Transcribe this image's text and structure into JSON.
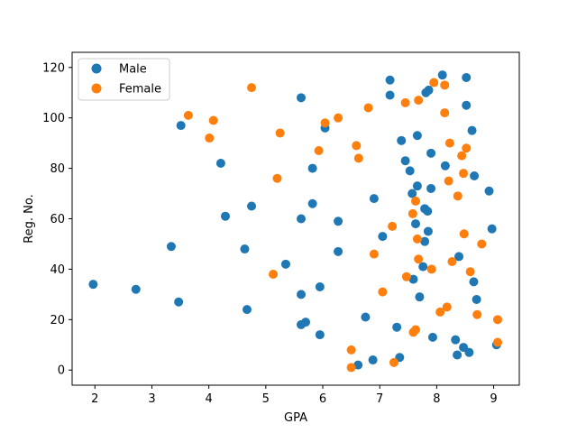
{
  "chart_data": {
    "type": "scatter",
    "title": "",
    "xlabel": "GPA",
    "ylabel": "Reg. No.",
    "xlim": [
      1.6,
      9.45
    ],
    "ylim": [
      -6,
      126
    ],
    "xticks": [
      2,
      3,
      4,
      5,
      6,
      7,
      8,
      9
    ],
    "yticks": [
      0,
      20,
      40,
      60,
      80,
      100,
      120
    ],
    "grid": false,
    "legend_position": "top-left",
    "series": [
      {
        "name": "Male",
        "color": "#1f77b4",
        "points": [
          [
            1.97,
            34
          ],
          [
            2.72,
            32
          ],
          [
            3.34,
            49
          ],
          [
            3.47,
            27
          ],
          [
            3.51,
            97
          ],
          [
            4.21,
            82
          ],
          [
            4.29,
            61
          ],
          [
            4.63,
            48
          ],
          [
            4.67,
            24
          ],
          [
            4.75,
            65
          ],
          [
            5.35,
            42
          ],
          [
            5.62,
            108
          ],
          [
            5.62,
            60
          ],
          [
            5.62,
            30
          ],
          [
            5.62,
            18
          ],
          [
            5.7,
            19
          ],
          [
            5.82,
            80
          ],
          [
            5.82,
            66
          ],
          [
            5.95,
            33
          ],
          [
            5.95,
            14
          ],
          [
            6.04,
            96
          ],
          [
            6.27,
            59
          ],
          [
            6.27,
            47
          ],
          [
            6.62,
            2
          ],
          [
            6.75,
            21
          ],
          [
            6.88,
            4
          ],
          [
            6.9,
            68
          ],
          [
            7.05,
            53
          ],
          [
            7.18,
            115
          ],
          [
            7.18,
            109
          ],
          [
            7.3,
            17
          ],
          [
            7.35,
            5
          ],
          [
            7.38,
            91
          ],
          [
            7.45,
            83
          ],
          [
            7.53,
            79
          ],
          [
            7.57,
            70
          ],
          [
            7.59,
            36
          ],
          [
            7.63,
            58
          ],
          [
            7.66,
            73
          ],
          [
            7.66,
            93
          ],
          [
            7.7,
            29
          ],
          [
            7.76,
            41
          ],
          [
            7.79,
            64
          ],
          [
            7.79,
            51
          ],
          [
            7.81,
            110
          ],
          [
            7.84,
            63
          ],
          [
            7.85,
            55
          ],
          [
            7.86,
            111
          ],
          [
            7.9,
            86
          ],
          [
            7.9,
            72
          ],
          [
            7.93,
            13
          ],
          [
            8.1,
            117
          ],
          [
            8.15,
            81
          ],
          [
            8.33,
            12
          ],
          [
            8.36,
            6
          ],
          [
            8.39,
            45
          ],
          [
            8.47,
            9
          ],
          [
            8.52,
            116
          ],
          [
            8.52,
            105
          ],
          [
            8.57,
            7
          ],
          [
            8.62,
            95
          ],
          [
            8.65,
            35
          ],
          [
            8.66,
            77
          ],
          [
            8.7,
            28
          ],
          [
            8.92,
            71
          ],
          [
            8.97,
            56
          ],
          [
            9.05,
            10
          ]
        ]
      },
      {
        "name": "Female",
        "color": "#ff7f0e",
        "points": [
          [
            3.64,
            101
          ],
          [
            4.01,
            92
          ],
          [
            4.08,
            99
          ],
          [
            4.75,
            112
          ],
          [
            5.13,
            38
          ],
          [
            5.2,
            76
          ],
          [
            5.25,
            94
          ],
          [
            5.93,
            87
          ],
          [
            6.04,
            98
          ],
          [
            6.27,
            100
          ],
          [
            6.5,
            8
          ],
          [
            6.5,
            1
          ],
          [
            6.59,
            89
          ],
          [
            6.63,
            84
          ],
          [
            6.8,
            104
          ],
          [
            6.9,
            46
          ],
          [
            7.05,
            31
          ],
          [
            7.22,
            57
          ],
          [
            7.25,
            3
          ],
          [
            7.45,
            106
          ],
          [
            7.47,
            37
          ],
          [
            7.58,
            62
          ],
          [
            7.59,
            15
          ],
          [
            7.63,
            16
          ],
          [
            7.63,
            67
          ],
          [
            7.66,
            52
          ],
          [
            7.68,
            44
          ],
          [
            7.68,
            107
          ],
          [
            7.91,
            40
          ],
          [
            7.95,
            114
          ],
          [
            8.06,
            23
          ],
          [
            8.14,
            113
          ],
          [
            8.14,
            102
          ],
          [
            8.18,
            25
          ],
          [
            8.21,
            75
          ],
          [
            8.23,
            90
          ],
          [
            8.27,
            43
          ],
          [
            8.37,
            69
          ],
          [
            8.44,
            85
          ],
          [
            8.47,
            78
          ],
          [
            8.48,
            54
          ],
          [
            8.52,
            88
          ],
          [
            8.59,
            39
          ],
          [
            8.71,
            22
          ],
          [
            8.79,
            50
          ],
          [
            9.07,
            20
          ],
          [
            9.07,
            11
          ]
        ]
      }
    ]
  }
}
